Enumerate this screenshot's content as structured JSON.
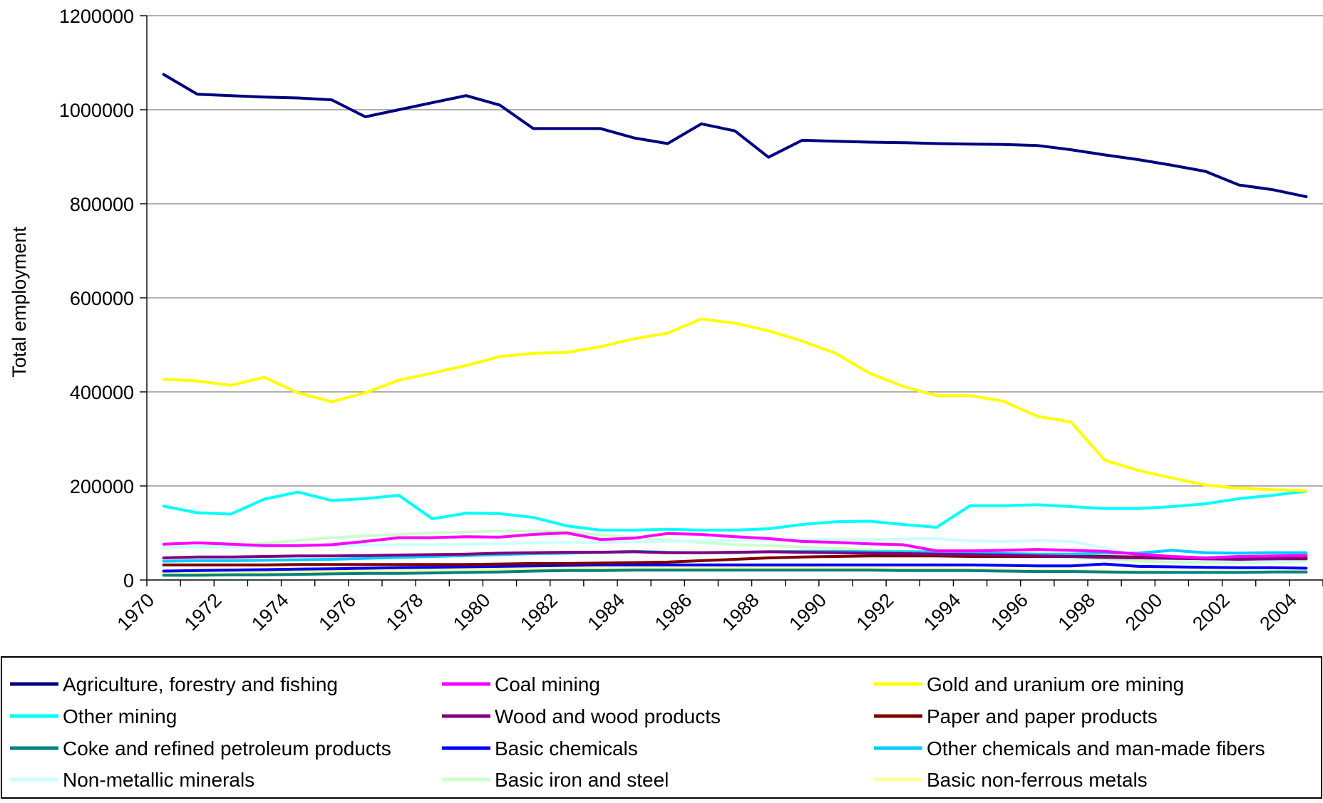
{
  "chart_data": {
    "type": "line",
    "title": "",
    "xlabel": "",
    "ylabel": "Total employment",
    "ylim": [
      0,
      1200000
    ],
    "yticks": [
      0,
      200000,
      400000,
      600000,
      800000,
      1000000,
      1200000
    ],
    "ytick_labels": [
      "0",
      "200000",
      "400000",
      "600000",
      "800000",
      "1000000",
      "1200000"
    ],
    "x": [
      1970,
      1971,
      1972,
      1973,
      1974,
      1975,
      1976,
      1977,
      1978,
      1979,
      1980,
      1981,
      1982,
      1983,
      1984,
      1985,
      1986,
      1987,
      1988,
      1989,
      1990,
      1991,
      1992,
      1993,
      1994,
      1995,
      1996,
      1997,
      1998,
      1999,
      2000,
      2001,
      2002,
      2003,
      2004
    ],
    "xtick_labels": [
      "1970",
      "1972",
      "1974",
      "1976",
      "1978",
      "1980",
      "1982",
      "1984",
      "1986",
      "1988",
      "1990",
      "1992",
      "1994",
      "1996",
      "1998",
      "2000",
      "2002",
      "2004"
    ],
    "grid": "horizontal",
    "legend_position": "bottom",
    "series": [
      {
        "name": "Agriculture, forestry and fishing",
        "color": "#000080",
        "values": [
          1075000,
          1033000,
          1030000,
          1027000,
          1025000,
          1021000,
          985000,
          1000000,
          1015000,
          1030000,
          1010000,
          960000,
          960000,
          960000,
          940000,
          928000,
          970000,
          955000,
          899000,
          935000,
          933000,
          931000,
          930000,
          928000,
          927000,
          926000,
          924000,
          915000,
          904000,
          894000,
          882000,
          869000,
          840000,
          830000,
          815000
        ]
      },
      {
        "name": "Coal mining",
        "color": "#ff00ff",
        "values": [
          76000,
          79000,
          76000,
          73000,
          73000,
          75000,
          82000,
          90000,
          90000,
          92000,
          91000,
          97000,
          100000,
          86000,
          89000,
          99000,
          97000,
          92000,
          88000,
          82000,
          80000,
          77000,
          75000,
          62000,
          62000,
          63000,
          65000,
          63000,
          61000,
          55000,
          50000,
          47000,
          50000,
          51000,
          52000
        ]
      },
      {
        "name": "Gold and uranium ore mining",
        "color": "#ffff00",
        "values": [
          427000,
          423000,
          414000,
          431000,
          398000,
          379000,
          398000,
          425000,
          440000,
          456000,
          475000,
          482000,
          484000,
          496000,
          513000,
          525000,
          555000,
          546000,
          530000,
          508000,
          482000,
          440000,
          412000,
          392000,
          392000,
          380000,
          348000,
          336000,
          255000,
          233000,
          217000,
          202000,
          195000,
          192000,
          190000
        ]
      },
      {
        "name": "Other mining",
        "color": "#00ffff",
        "values": [
          157000,
          143000,
          140000,
          172000,
          187000,
          169000,
          173000,
          180000,
          130000,
          142000,
          141000,
          133000,
          115000,
          106000,
          106000,
          108000,
          106000,
          106000,
          109000,
          118000,
          124000,
          125000,
          118000,
          112000,
          158000,
          158000,
          160000,
          156000,
          152000,
          152000,
          156000,
          162000,
          173000,
          180000,
          189000
        ]
      },
      {
        "name": "Wood and wood products",
        "color": "#800080",
        "values": [
          47000,
          49000,
          49000,
          50000,
          51000,
          51000,
          52000,
          53000,
          54000,
          55000,
          57000,
          58000,
          59000,
          59000,
          60000,
          58000,
          58000,
          59000,
          60000,
          59000,
          58000,
          57000,
          56000,
          55000,
          54000,
          53000,
          51000,
          50000,
          48000,
          47000,
          46000,
          45000,
          44000,
          45000,
          47000
        ]
      },
      {
        "name": "Paper and paper products",
        "color": "#800000",
        "values": [
          32000,
          32000,
          32000,
          32000,
          33000,
          33000,
          33000,
          33000,
          33000,
          33000,
          34000,
          35000,
          35000,
          36000,
          37000,
          38000,
          41000,
          44000,
          47000,
          49000,
          50000,
          51000,
          51000,
          51000,
          50000,
          50000,
          50000,
          50000,
          50000,
          49000,
          47000,
          45000,
          45000,
          45000,
          45000
        ]
      },
      {
        "name": "Coke and refined petroleum products",
        "color": "#008080",
        "values": [
          10000,
          10000,
          11000,
          11000,
          12000,
          13000,
          14000,
          14000,
          15000,
          16000,
          17000,
          19000,
          20000,
          20000,
          21000,
          21000,
          21000,
          21000,
          21000,
          21000,
          21000,
          21000,
          20000,
          20000,
          20000,
          19000,
          18000,
          18000,
          17000,
          16000,
          16000,
          16000,
          16000,
          17000,
          17000
        ]
      },
      {
        "name": "Basic chemicals",
        "color": "#0000ff",
        "values": [
          19000,
          20000,
          21000,
          22000,
          23000,
          24000,
          25000,
          26000,
          27000,
          28000,
          29000,
          30000,
          31000,
          32000,
          32000,
          32000,
          32000,
          32000,
          32000,
          32000,
          32000,
          32000,
          32000,
          32000,
          32000,
          31000,
          30000,
          30000,
          34000,
          29000,
          28000,
          27000,
          26000,
          26000,
          25000
        ]
      },
      {
        "name": "Other chemicals and man-made fibers",
        "color": "#00ccff",
        "values": [
          40000,
          41000,
          41000,
          42000,
          43000,
          44000,
          46000,
          48000,
          50000,
          52000,
          54000,
          56000,
          57000,
          59000,
          61000,
          59000,
          58000,
          58000,
          60000,
          61000,
          61000,
          60000,
          60000,
          60000,
          58000,
          56000,
          55000,
          55000,
          57000,
          57000,
          63000,
          58000,
          57000,
          58000,
          58000
        ]
      },
      {
        "name": "Non-metallic minerals",
        "color": "#ccffff",
        "values": [
          68000,
          70000,
          70000,
          71000,
          72000,
          73000,
          74000,
          75000,
          75000,
          76000,
          77000,
          79000,
          80000,
          80000,
          81000,
          82000,
          83000,
          84000,
          85000,
          86000,
          86000,
          86000,
          87000,
          88000,
          83000,
          82000,
          84000,
          82000,
          68000,
          52000,
          45000,
          42000,
          41000,
          40000,
          40000
        ]
      },
      {
        "name": "Basic iron and steel",
        "color": "#ccffcc",
        "values": [
          68000,
          71000,
          73000,
          78000,
          84000,
          90000,
          94000,
          97000,
          100000,
          102000,
          104000,
          104000,
          102000,
          96000,
          90000,
          85000,
          80000,
          75000,
          73000,
          70000,
          67000,
          64000,
          61000,
          58000,
          55000,
          52000,
          50000,
          47000,
          45000,
          40000,
          38000,
          37000,
          37000,
          38000,
          40000
        ]
      },
      {
        "name": "Basic non-ferrous metals",
        "color": "#ffff99",
        "values": [
          14000,
          15000,
          16000,
          17000,
          18000,
          19000,
          20000,
          21000,
          22000,
          22000,
          23000,
          24000,
          24000,
          25000,
          25000,
          26000,
          26000,
          26000,
          26000,
          26000,
          25000,
          25000,
          24000,
          24000,
          23000,
          22000,
          21000,
          20000,
          19000,
          18000,
          17000,
          17000,
          17000,
          17000,
          18000
        ]
      }
    ]
  }
}
